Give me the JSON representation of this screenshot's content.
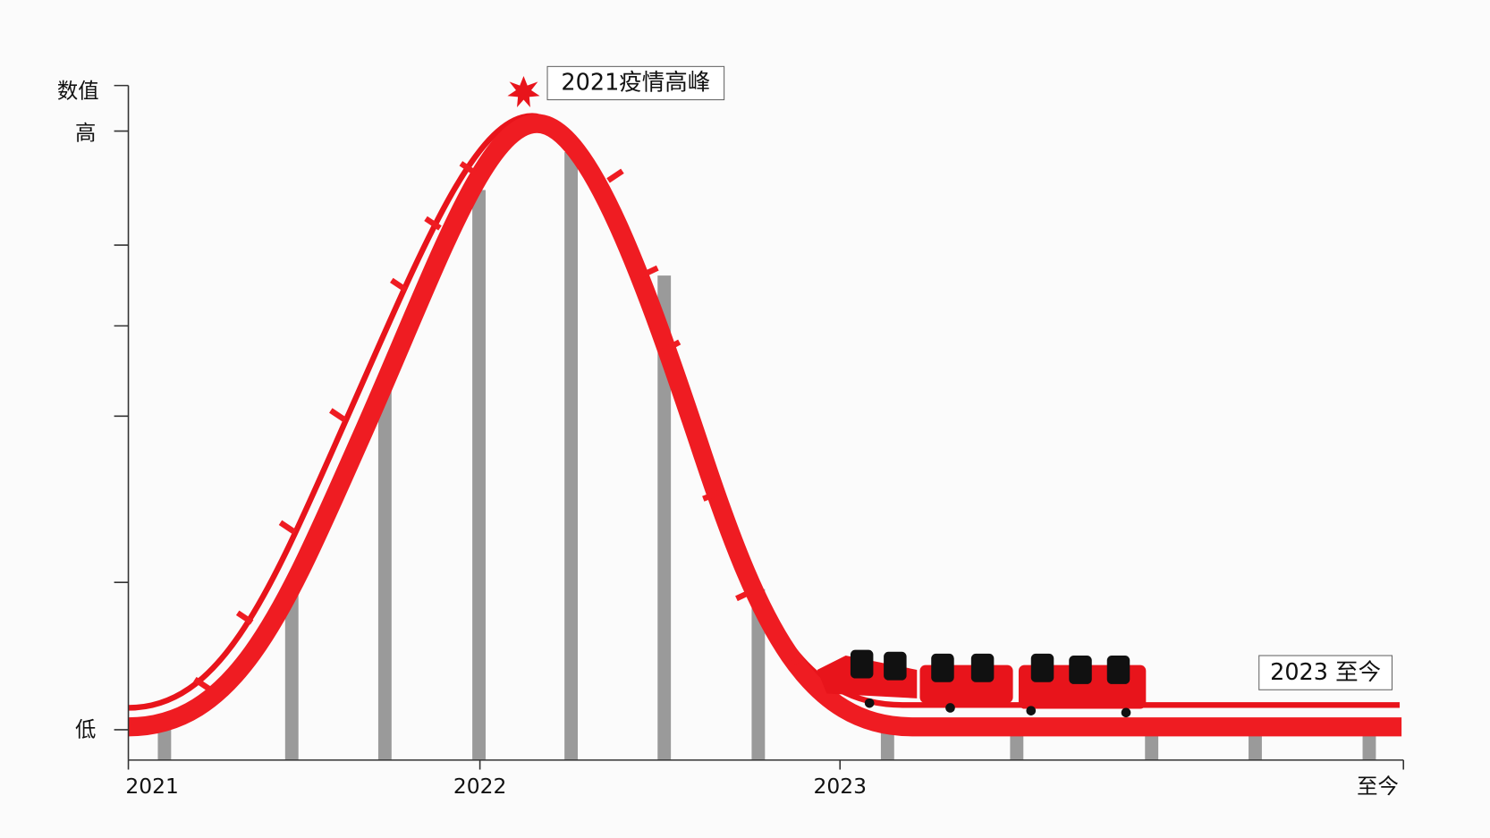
{
  "y_axis": {
    "title": "数值",
    "labels": [
      "高",
      "低"
    ]
  },
  "x_axis": {
    "labels": [
      "2021",
      "2022",
      "2023",
      "至今"
    ]
  },
  "annotations": [
    "2021疫情高峰",
    "2023 至今"
  ]
}
